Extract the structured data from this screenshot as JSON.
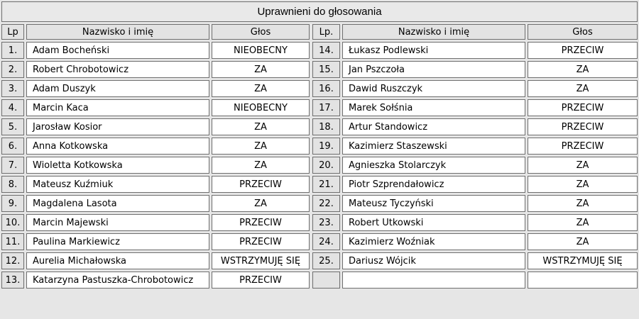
{
  "title": "Uprawnieni do głosowania",
  "colors": {
    "border": "#6e6e6e",
    "gray_cell_bg": "#e3e3e3",
    "title_bg": "#e9e9e9",
    "page_bg": "#e6e6e6",
    "cell_bg": "#ffffff",
    "text": "#000000"
  },
  "tables": {
    "left": {
      "headers": {
        "lp": "Lp",
        "name": "Nazwisko i imię",
        "vote": "Głos"
      },
      "rows": [
        {
          "lp": "1.",
          "name": "Adam Bocheński",
          "vote": "NIEOBECNY"
        },
        {
          "lp": "2.",
          "name": "Robert Chrobotowicz",
          "vote": "ZA"
        },
        {
          "lp": "3.",
          "name": "Adam Duszyk",
          "vote": "ZA"
        },
        {
          "lp": "4.",
          "name": "Marcin Kaca",
          "vote": "NIEOBECNY"
        },
        {
          "lp": "5.",
          "name": "Jarosław Kosior",
          "vote": "ZA"
        },
        {
          "lp": "6.",
          "name": "Anna Kotkowska",
          "vote": "ZA"
        },
        {
          "lp": "7.",
          "name": "Wioletta Kotkowska",
          "vote": "ZA"
        },
        {
          "lp": "8.",
          "name": "Mateusz Kuźmiuk",
          "vote": "PRZECIW"
        },
        {
          "lp": "9.",
          "name": "Magdalena Lasota",
          "vote": "ZA"
        },
        {
          "lp": "10.",
          "name": "Marcin Majewski",
          "vote": "PRZECIW"
        },
        {
          "lp": "11.",
          "name": "Paulina Markiewicz",
          "vote": "PRZECIW"
        },
        {
          "lp": "12.",
          "name": "Aurelia Michałowska",
          "vote": "WSTRZYMUJĘ SIĘ"
        },
        {
          "lp": "13.",
          "name": "Katarzyna Pastuszka-Chrobotowicz",
          "vote": "PRZECIW"
        }
      ]
    },
    "right": {
      "headers": {
        "lp": "Lp.",
        "name": "Nazwisko i imię",
        "vote": "Głos"
      },
      "rows": [
        {
          "lp": "14.",
          "name": "Łukasz Podlewski",
          "vote": "PRZECIW"
        },
        {
          "lp": "15.",
          "name": "Jan Pszczoła",
          "vote": "ZA"
        },
        {
          "lp": "16.",
          "name": "Dawid Ruszczyk",
          "vote": "ZA"
        },
        {
          "lp": "17.",
          "name": "Marek Sołśnia",
          "vote": "PRZECIW"
        },
        {
          "lp": "18.",
          "name": "Artur Standowicz",
          "vote": "PRZECIW"
        },
        {
          "lp": "19.",
          "name": "Kazimierz Staszewski",
          "vote": "PRZECIW"
        },
        {
          "lp": "20.",
          "name": "Agnieszka Stolarczyk",
          "vote": "ZA"
        },
        {
          "lp": "21.",
          "name": "Piotr Szprendałowicz",
          "vote": "ZA"
        },
        {
          "lp": "22.",
          "name": "Mateusz Tyczyński",
          "vote": "ZA"
        },
        {
          "lp": "23.",
          "name": "Robert Utkowski",
          "vote": "ZA"
        },
        {
          "lp": "24.",
          "name": "Kazimierz Woźniak",
          "vote": "ZA"
        },
        {
          "lp": "25.",
          "name": "Dariusz Wójcik",
          "vote": "WSTRZYMUJĘ SIĘ"
        },
        {
          "lp": "",
          "name": "",
          "vote": ""
        }
      ]
    }
  }
}
